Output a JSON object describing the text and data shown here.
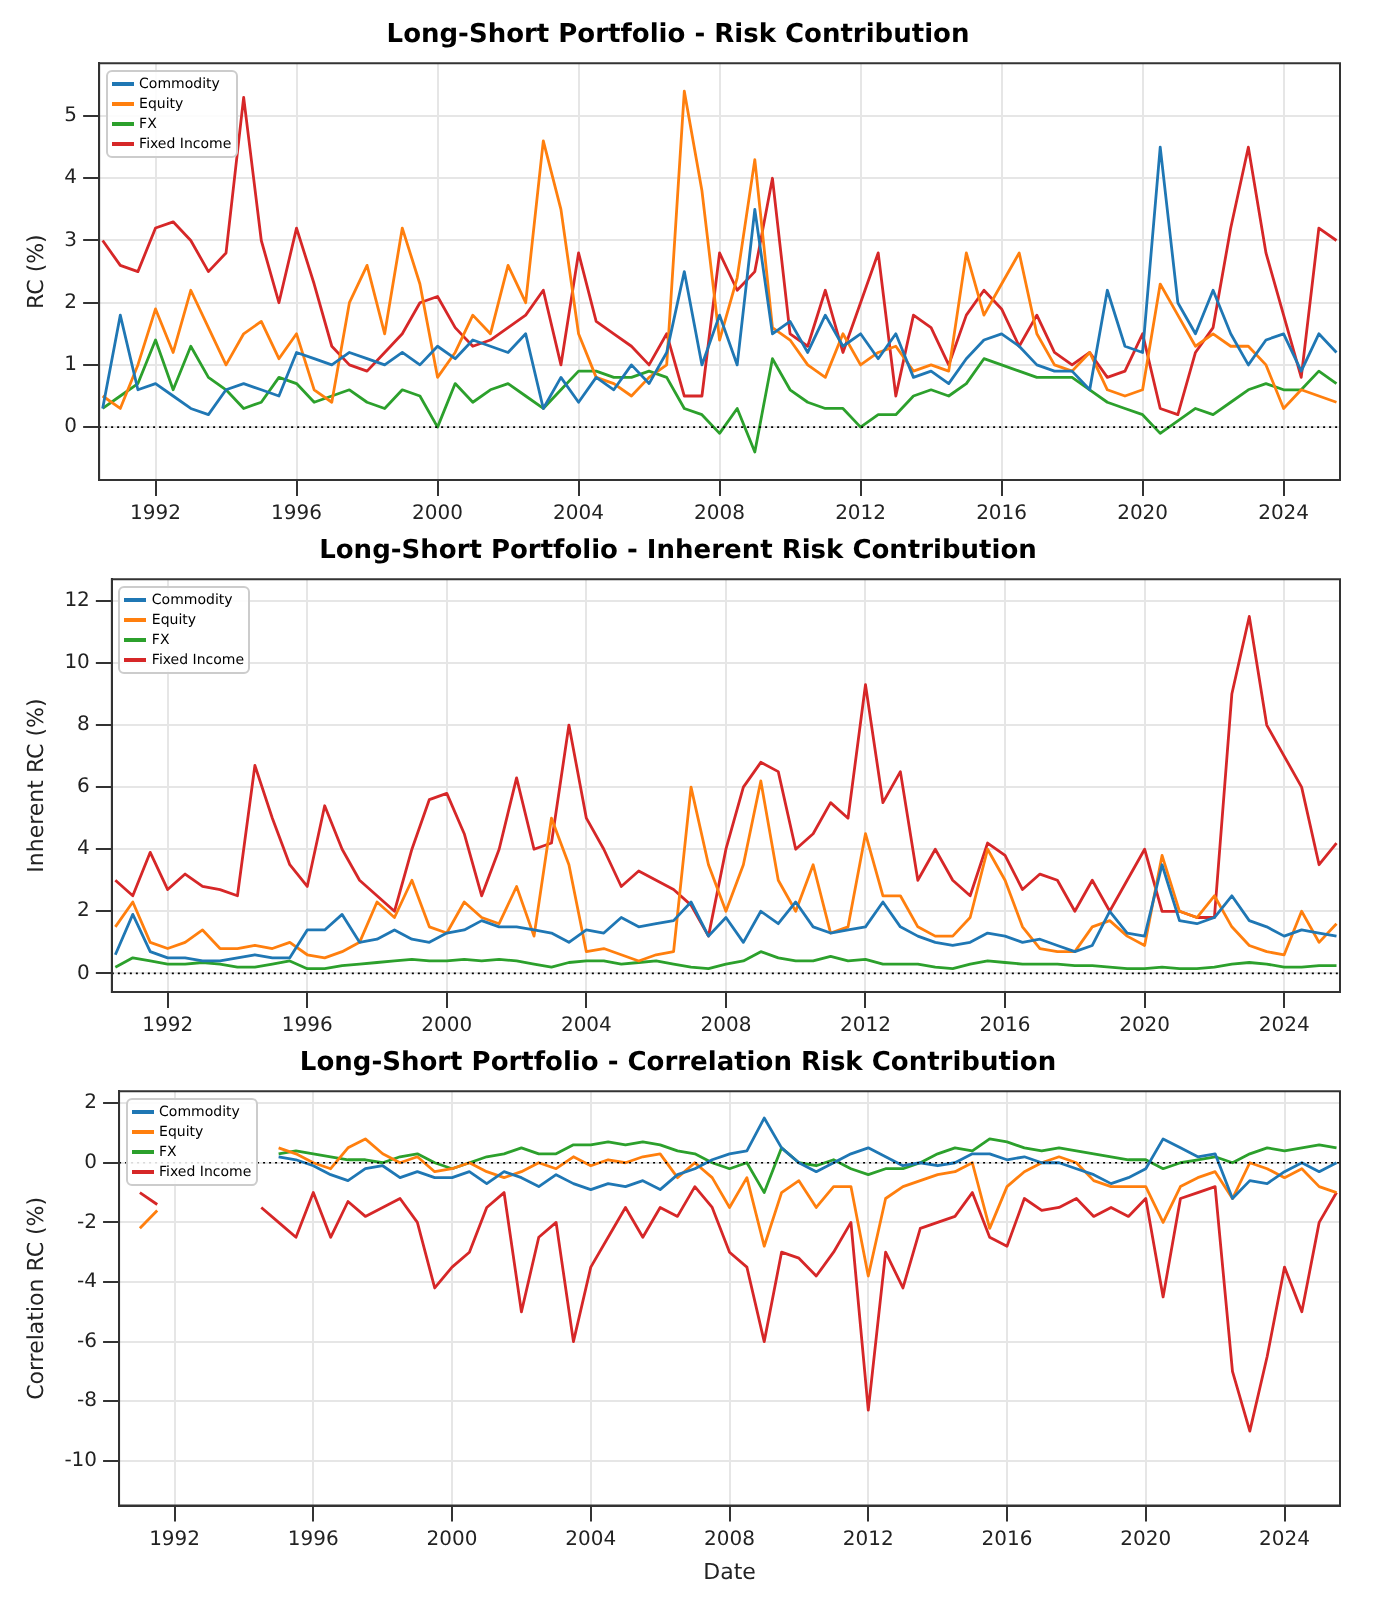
{
  "chart_data": [
    {
      "type": "line",
      "title": "Long-Short Portfolio - Risk Contribution",
      "ylabel": "RC (%)",
      "xlim": [
        1990.4,
        2025.6
      ],
      "xticks": [
        1992,
        1996,
        2000,
        2004,
        2008,
        2012,
        2016,
        2020,
        2024
      ],
      "ylim": [
        -0.85,
        5.85
      ],
      "yticks": [
        0,
        1,
        2,
        3,
        4,
        5
      ],
      "grid": true,
      "legend": "top left",
      "ref_lines": [
        {
          "axis": "y",
          "value": 0,
          "color": "#000000",
          "line_style": "dotted"
        }
      ],
      "x": [
        1990.5,
        1991,
        1991.5,
        1992,
        1992.5,
        1993,
        1993.5,
        1994,
        1994.5,
        1995,
        1995.5,
        1996,
        1996.5,
        1997,
        1997.5,
        1998,
        1998.5,
        1999,
        1999.5,
        2000,
        2000.5,
        2001,
        2001.5,
        2002,
        2002.5,
        2003,
        2003.5,
        2004,
        2004.5,
        2005,
        2005.5,
        2006,
        2006.5,
        2007,
        2007.5,
        2008,
        2008.5,
        2009,
        2009.5,
        2010,
        2010.5,
        2011,
        2011.5,
        2012,
        2012.5,
        2013,
        2013.5,
        2014,
        2014.5,
        2015,
        2015.5,
        2016,
        2016.5,
        2017,
        2017.5,
        2018,
        2018.5,
        2019,
        2019.5,
        2020,
        2020.5,
        2021,
        2021.5,
        2022,
        2022.5,
        2023,
        2023.5,
        2024,
        2024.5,
        2025,
        2025.5
      ],
      "series": [
        {
          "name": "Commodity",
          "color": "#1f77b4",
          "values": [
            0.3,
            1.8,
            0.6,
            0.7,
            0.5,
            0.3,
            0.2,
            0.6,
            0.7,
            0.6,
            0.5,
            1.2,
            1.1,
            1.0,
            1.2,
            1.1,
            1.0,
            1.2,
            1.0,
            1.3,
            1.1,
            1.4,
            1.3,
            1.2,
            1.5,
            0.3,
            0.8,
            0.4,
            0.8,
            0.6,
            1.0,
            0.7,
            1.2,
            2.5,
            1.0,
            1.8,
            1.0,
            3.5,
            1.5,
            1.7,
            1.2,
            1.8,
            1.3,
            1.5,
            1.1,
            1.5,
            0.8,
            0.9,
            0.7,
            1.1,
            1.4,
            1.5,
            1.3,
            1.0,
            0.9,
            0.9,
            0.6,
            2.2,
            1.3,
            1.2,
            4.5,
            2.0,
            1.5,
            2.2,
            1.5,
            1.0,
            1.4,
            1.5,
            0.9,
            1.5,
            1.2
          ]
        },
        {
          "name": "Equity",
          "color": "#ff7f0e",
          "values": [
            0.5,
            0.3,
            1.0,
            1.9,
            1.2,
            2.2,
            1.6,
            1.0,
            1.5,
            1.7,
            1.1,
            1.5,
            0.6,
            0.4,
            2.0,
            2.6,
            1.5,
            3.2,
            2.3,
            0.8,
            1.2,
            1.8,
            1.5,
            2.6,
            2.0,
            4.6,
            3.5,
            1.5,
            0.8,
            0.7,
            0.5,
            0.8,
            1.0,
            5.4,
            3.8,
            1.4,
            2.4,
            4.3,
            1.6,
            1.4,
            1.0,
            0.8,
            1.5,
            1.0,
            1.2,
            1.3,
            0.9,
            1.0,
            0.9,
            2.8,
            1.8,
            2.3,
            2.8,
            1.5,
            1.0,
            0.9,
            1.2,
            0.6,
            0.5,
            0.6,
            2.3,
            1.8,
            1.3,
            1.5,
            1.3,
            1.3,
            1.0,
            0.3,
            0.6,
            0.5,
            0.4
          ]
        },
        {
          "name": "FX",
          "color": "#2ca02c",
          "values": [
            0.3,
            0.5,
            0.7,
            1.4,
            0.6,
            1.3,
            0.8,
            0.6,
            0.3,
            0.4,
            0.8,
            0.7,
            0.4,
            0.5,
            0.6,
            0.4,
            0.3,
            0.6,
            0.5,
            0.0,
            0.7,
            0.4,
            0.6,
            0.7,
            0.5,
            0.3,
            0.6,
            0.9,
            0.9,
            0.8,
            0.8,
            0.9,
            0.8,
            0.3,
            0.2,
            -0.1,
            0.3,
            -0.4,
            1.1,
            0.6,
            0.4,
            0.3,
            0.3,
            0.0,
            0.2,
            0.2,
            0.5,
            0.6,
            0.5,
            0.7,
            1.1,
            1.0,
            0.9,
            0.8,
            0.8,
            0.8,
            0.6,
            0.4,
            0.3,
            0.2,
            -0.1,
            0.1,
            0.3,
            0.2,
            0.4,
            0.6,
            0.7,
            0.6,
            0.6,
            0.9,
            0.7
          ]
        },
        {
          "name": "Fixed Income",
          "color": "#d62728",
          "values": [
            3.0,
            2.6,
            2.5,
            3.2,
            3.3,
            3.0,
            2.5,
            2.8,
            5.3,
            3.0,
            2.0,
            3.2,
            2.3,
            1.3,
            1.0,
            0.9,
            1.2,
            1.5,
            2.0,
            2.1,
            1.6,
            1.3,
            1.4,
            1.6,
            1.8,
            2.2,
            1.0,
            2.8,
            1.7,
            1.5,
            1.3,
            1.0,
            1.5,
            0.5,
            0.5,
            2.8,
            2.2,
            2.5,
            4.0,
            1.5,
            1.3,
            2.2,
            1.2,
            2.0,
            2.8,
            0.5,
            1.8,
            1.6,
            1.0,
            1.8,
            2.2,
            1.9,
            1.3,
            1.8,
            1.2,
            1.0,
            1.2,
            0.8,
            0.9,
            1.5,
            0.3,
            0.2,
            1.2,
            1.6,
            3.2,
            4.5,
            2.8,
            1.8,
            0.8,
            3.2,
            3.0
          ]
        }
      ]
    },
    {
      "type": "line",
      "title": "Long-Short Portfolio - Inherent Risk Contribution",
      "ylabel": "Inherent RC (%)",
      "xlim": [
        1990.4,
        2025.6
      ],
      "xticks": [
        1992,
        1996,
        2000,
        2004,
        2008,
        2012,
        2016,
        2020,
        2024
      ],
      "ylim": [
        -0.6,
        12.7
      ],
      "yticks": [
        0,
        2,
        4,
        6,
        8,
        10,
        12
      ],
      "grid": true,
      "legend": "top left",
      "ref_lines": [
        {
          "axis": "y",
          "value": 0,
          "color": "#000000",
          "line_style": "dotted"
        }
      ],
      "x": [
        1990.5,
        1991,
        1991.5,
        1992,
        1992.5,
        1993,
        1993.5,
        1994,
        1994.5,
        1995,
        1995.5,
        1996,
        1996.5,
        1997,
        1997.5,
        1998,
        1998.5,
        1999,
        1999.5,
        2000,
        2000.5,
        2001,
        2001.5,
        2002,
        2002.5,
        2003,
        2003.5,
        2004,
        2004.5,
        2005,
        2005.5,
        2006,
        2006.5,
        2007,
        2007.5,
        2008,
        2008.5,
        2009,
        2009.5,
        2010,
        2010.5,
        2011,
        2011.5,
        2012,
        2012.5,
        2013,
        2013.5,
        2014,
        2014.5,
        2015,
        2015.5,
        2016,
        2016.5,
        2017,
        2017.5,
        2018,
        2018.5,
        2019,
        2019.5,
        2020,
        2020.5,
        2021,
        2021.5,
        2022,
        2022.5,
        2023,
        2023.5,
        2024,
        2024.5,
        2025,
        2025.5
      ],
      "series": [
        {
          "name": "Commodity",
          "color": "#1f77b4",
          "values": [
            0.6,
            1.9,
            0.7,
            0.5,
            0.5,
            0.4,
            0.4,
            0.5,
            0.6,
            0.5,
            0.5,
            1.4,
            1.4,
            1.9,
            1.0,
            1.1,
            1.4,
            1.1,
            1.0,
            1.3,
            1.4,
            1.7,
            1.5,
            1.5,
            1.4,
            1.3,
            1.0,
            1.4,
            1.3,
            1.8,
            1.5,
            1.6,
            1.7,
            2.3,
            1.2,
            1.8,
            1.0,
            2.0,
            1.6,
            2.3,
            1.5,
            1.3,
            1.4,
            1.5,
            2.3,
            1.5,
            1.2,
            1.0,
            0.9,
            1.0,
            1.3,
            1.2,
            1.0,
            1.1,
            0.9,
            0.7,
            0.9,
            2.0,
            1.3,
            1.2,
            3.5,
            1.7,
            1.6,
            1.8,
            2.5,
            1.7,
            1.5,
            1.2,
            1.4,
            1.3,
            1.2
          ]
        },
        {
          "name": "Equity",
          "color": "#ff7f0e",
          "values": [
            1.5,
            2.3,
            1.0,
            0.8,
            1.0,
            1.4,
            0.8,
            0.8,
            0.9,
            0.8,
            1.0,
            0.6,
            0.5,
            0.7,
            1.0,
            2.3,
            1.8,
            3.0,
            1.5,
            1.3,
            2.3,
            1.8,
            1.6,
            2.8,
            1.2,
            5.0,
            3.5,
            0.7,
            0.8,
            0.6,
            0.4,
            0.6,
            0.7,
            6.0,
            3.5,
            2.0,
            3.5,
            6.2,
            3.0,
            2.0,
            3.5,
            1.3,
            1.5,
            4.5,
            2.5,
            2.5,
            1.5,
            1.2,
            1.2,
            1.8,
            4.0,
            3.0,
            1.5,
            0.8,
            0.7,
            0.7,
            1.5,
            1.7,
            1.2,
            0.9,
            3.8,
            2.0,
            1.8,
            2.5,
            1.5,
            0.9,
            0.7,
            0.6,
            2.0,
            1.0,
            1.6
          ]
        },
        {
          "name": "FX",
          "color": "#2ca02c",
          "values": [
            0.2,
            0.5,
            0.4,
            0.3,
            0.3,
            0.35,
            0.3,
            0.2,
            0.2,
            0.3,
            0.4,
            0.15,
            0.15,
            0.25,
            0.3,
            0.35,
            0.4,
            0.45,
            0.4,
            0.4,
            0.45,
            0.4,
            0.45,
            0.4,
            0.3,
            0.2,
            0.35,
            0.4,
            0.4,
            0.3,
            0.35,
            0.4,
            0.3,
            0.2,
            0.15,
            0.3,
            0.4,
            0.7,
            0.5,
            0.4,
            0.4,
            0.55,
            0.4,
            0.45,
            0.3,
            0.3,
            0.3,
            0.2,
            0.15,
            0.3,
            0.4,
            0.35,
            0.3,
            0.3,
            0.3,
            0.25,
            0.25,
            0.2,
            0.15,
            0.15,
            0.2,
            0.15,
            0.15,
            0.2,
            0.3,
            0.35,
            0.3,
            0.2,
            0.2,
            0.25,
            0.25
          ]
        },
        {
          "name": "Fixed Income",
          "color": "#d62728",
          "values": [
            3.0,
            2.5,
            3.9,
            2.7,
            3.2,
            2.8,
            2.7,
            2.5,
            6.7,
            5.0,
            3.5,
            2.8,
            5.4,
            4.0,
            3.0,
            2.5,
            2.0,
            4.0,
            5.6,
            5.8,
            4.5,
            2.5,
            4.0,
            6.3,
            4.0,
            4.2,
            8.0,
            5.0,
            4.0,
            2.8,
            3.3,
            3.0,
            2.7,
            2.2,
            1.2,
            4.0,
            6.0,
            6.8,
            6.5,
            4.0,
            4.5,
            5.5,
            5.0,
            9.3,
            5.5,
            6.5,
            3.0,
            4.0,
            3.0,
            2.5,
            4.2,
            3.8,
            2.7,
            3.2,
            3.0,
            2.0,
            3.0,
            2.0,
            3.0,
            4.0,
            2.0,
            2.0,
            1.8,
            1.8,
            9.0,
            11.5,
            8.0,
            7.0,
            6.0,
            3.5,
            4.2
          ]
        }
      ]
    },
    {
      "type": "line",
      "title": "Long-Short Portfolio - Correlation Risk Contribution",
      "xlabel": "Date",
      "ylabel": "Correlation RC (%)",
      "xlim": [
        1990.4,
        2025.6
      ],
      "xticks": [
        1992,
        1996,
        2000,
        2004,
        2008,
        2012,
        2016,
        2020,
        2024
      ],
      "ylim": [
        -11.5,
        2.4
      ],
      "yticks": [
        -10,
        -8,
        -6,
        -4,
        -2,
        0,
        2
      ],
      "grid": true,
      "legend": "top left",
      "ref_lines": [
        {
          "axis": "y",
          "value": 0,
          "color": "#000000",
          "line_style": "dotted"
        }
      ],
      "x": [
        1991,
        1991.5,
        1992,
        1992.5,
        1993,
        1993.5,
        1994,
        1994.5,
        1995,
        1995.5,
        1996,
        1996.5,
        1997,
        1997.5,
        1998,
        1998.5,
        1999,
        1999.5,
        2000,
        2000.5,
        2001,
        2001.5,
        2002,
        2002.5,
        2003,
        2003.5,
        2004,
        2004.5,
        2005,
        2005.5,
        2006,
        2006.5,
        2007,
        2007.5,
        2008,
        2008.5,
        2009,
        2009.5,
        2010,
        2010.5,
        2011,
        2011.5,
        2012,
        2012.5,
        2013,
        2013.5,
        2014,
        2014.5,
        2015,
        2015.5,
        2016,
        2016.5,
        2017,
        2017.5,
        2018,
        2018.5,
        2019,
        2019.5,
        2020,
        2020.5,
        2021,
        2021.5,
        2022,
        2022.5,
        2023,
        2023.5,
        2024,
        2024.5,
        2025,
        2025.5
      ],
      "series": [
        {
          "name": "Commodity",
          "color": "#1f77b4",
          "values": [
            null,
            null,
            null,
            null,
            null,
            null,
            null,
            null,
            0.2,
            0.1,
            -0.1,
            -0.4,
            -0.6,
            -0.2,
            -0.1,
            -0.5,
            -0.3,
            -0.5,
            -0.5,
            -0.3,
            -0.7,
            -0.3,
            -0.5,
            -0.8,
            -0.4,
            -0.7,
            -0.9,
            -0.7,
            -0.8,
            -0.6,
            -0.9,
            -0.4,
            -0.2,
            0.1,
            0.3,
            0.4,
            1.5,
            0.5,
            0.0,
            -0.3,
            0.0,
            0.3,
            0.5,
            0.2,
            -0.1,
            0.0,
            -0.1,
            0.0,
            0.3,
            0.3,
            0.1,
            0.2,
            0.0,
            0.0,
            -0.2,
            -0.4,
            -0.7,
            -0.5,
            -0.2,
            0.8,
            0.5,
            0.2,
            0.3,
            -1.2,
            -0.6,
            -0.7,
            -0.3,
            0.0,
            -0.3,
            0.0
          ]
        },
        {
          "name": "Equity",
          "color": "#ff7f0e",
          "values": [
            -2.2,
            -1.6,
            null,
            null,
            null,
            null,
            null,
            null,
            0.5,
            0.3,
            0.0,
            -0.2,
            0.5,
            0.8,
            0.3,
            0.0,
            0.2,
            -0.3,
            -0.2,
            0.0,
            -0.3,
            -0.5,
            -0.3,
            0.0,
            -0.2,
            0.2,
            -0.1,
            0.1,
            0.0,
            0.2,
            0.3,
            -0.5,
            0.0,
            -0.5,
            -1.5,
            -0.5,
            -2.8,
            -1.0,
            -0.6,
            -1.5,
            -0.8,
            -0.8,
            -3.8,
            -1.2,
            -0.8,
            -0.6,
            -0.4,
            -0.3,
            0.0,
            -2.2,
            -0.8,
            -0.3,
            0.0,
            0.2,
            0.0,
            -0.6,
            -0.8,
            -0.8,
            -0.8,
            -2.0,
            -0.8,
            -0.5,
            -0.3,
            -1.2,
            0.0,
            -0.2,
            -0.5,
            -0.2,
            -0.8,
            -1.0
          ]
        },
        {
          "name": "FX",
          "color": "#2ca02c",
          "values": [
            null,
            null,
            null,
            null,
            null,
            null,
            null,
            null,
            0.3,
            0.4,
            0.3,
            0.2,
            0.1,
            0.1,
            0.0,
            0.2,
            0.3,
            0.0,
            -0.2,
            0.0,
            0.2,
            0.3,
            0.5,
            0.3,
            0.3,
            0.6,
            0.6,
            0.7,
            0.6,
            0.7,
            0.6,
            0.4,
            0.3,
            0.0,
            -0.2,
            0.0,
            -1.0,
            0.5,
            0.0,
            -0.1,
            0.1,
            -0.2,
            -0.4,
            -0.2,
            -0.2,
            0.0,
            0.3,
            0.5,
            0.4,
            0.8,
            0.7,
            0.5,
            0.4,
            0.5,
            0.4,
            0.3,
            0.2,
            0.1,
            0.1,
            -0.2,
            0.0,
            0.1,
            0.2,
            0.0,
            0.3,
            0.5,
            0.4,
            0.5,
            0.6,
            0.5
          ]
        },
        {
          "name": "Fixed Income",
          "color": "#d62728",
          "values": [
            -1.0,
            -1.4,
            null,
            null,
            null,
            null,
            null,
            -1.5,
            -2.0,
            -2.5,
            -1.0,
            -2.5,
            -1.3,
            -1.8,
            -1.5,
            -1.2,
            -2.0,
            -4.2,
            -3.5,
            -3.0,
            -1.5,
            -1.0,
            -5.0,
            -2.5,
            -2.0,
            -6.0,
            -3.5,
            -2.5,
            -1.5,
            -2.5,
            -1.5,
            -1.8,
            -0.8,
            -1.5,
            -3.0,
            -3.5,
            -6.0,
            -3.0,
            -3.2,
            -3.8,
            -3.0,
            -2.0,
            -8.3,
            -3.0,
            -4.2,
            -2.2,
            -2.0,
            -1.8,
            -1.0,
            -2.5,
            -2.8,
            -1.2,
            -1.6,
            -1.5,
            -1.2,
            -1.8,
            -1.5,
            -1.8,
            -1.2,
            -4.5,
            -1.2,
            -1.0,
            -0.8,
            -7.0,
            -9.0,
            -6.5,
            -3.5,
            -5.0,
            -2.0,
            -1.0
          ]
        }
      ]
    }
  ]
}
